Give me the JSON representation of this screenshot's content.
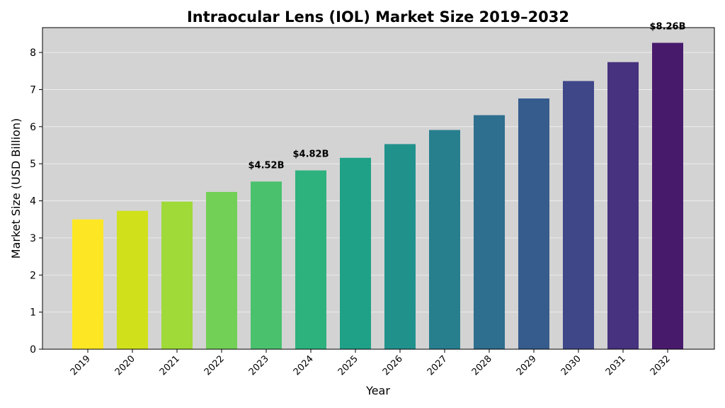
{
  "chart_data": {
    "type": "bar",
    "title": "Intraocular Lens (IOL) Market Size 2019–2032",
    "xlabel": "Year",
    "ylabel": "Market Size (USD Billion)",
    "categories": [
      "2019",
      "2020",
      "2021",
      "2022",
      "2023",
      "2024",
      "2025",
      "2026",
      "2027",
      "2028",
      "2029",
      "2030",
      "2031",
      "2032"
    ],
    "values": [
      3.5,
      3.73,
      3.98,
      4.24,
      4.52,
      4.82,
      5.16,
      5.53,
      5.91,
      6.31,
      6.76,
      7.23,
      7.74,
      8.26
    ],
    "colors": [
      "#fde725",
      "#d0e11c",
      "#a0da39",
      "#73d056",
      "#4ac16d",
      "#2db27d",
      "#1fa187",
      "#21918c",
      "#277f8e",
      "#2e6e8e",
      "#365c8d",
      "#3f4788",
      "#46327e",
      "#481a6c"
    ],
    "ylim": [
      0,
      8.67
    ],
    "yticks": [
      0,
      1,
      2,
      3,
      4,
      5,
      6,
      7,
      8
    ],
    "grid": true,
    "plot_background": "#d3d3d3",
    "annotations": [
      {
        "category": "2023",
        "text": "$4.52B"
      },
      {
        "category": "2024",
        "text": "$4.82B"
      },
      {
        "category": "2032",
        "text": "$8.26B"
      }
    ]
  }
}
